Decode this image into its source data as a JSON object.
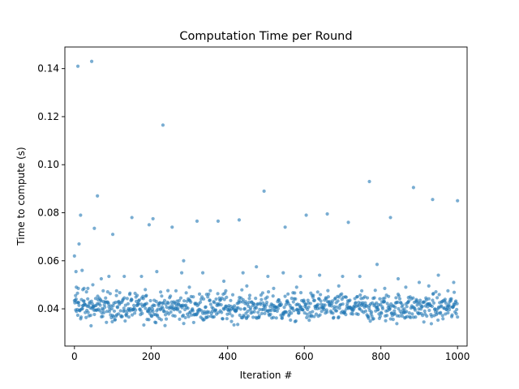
{
  "chart_data": {
    "type": "scatter",
    "title": "Computation Time per Round",
    "xlabel": "Iteration #",
    "ylabel": "Time to compute (s)",
    "xlim": [
      -25,
      1025
    ],
    "ylim": [
      0.0245,
      0.149
    ],
    "x_ticks": [
      0,
      200,
      400,
      600,
      800,
      1000
    ],
    "x_tick_labels": [
      "0",
      "200",
      "400",
      "600",
      "800",
      "1000"
    ],
    "y_ticks": [
      0.04,
      0.06,
      0.08,
      0.1,
      0.12,
      0.14
    ],
    "y_tick_labels": [
      "0.04",
      "0.06",
      "0.08",
      "0.10",
      "0.12",
      "0.14"
    ],
    "grid": false,
    "legend": "none",
    "point_color": "#1f77b4",
    "point_alpha": 0.6,
    "n_points": 1000,
    "series": [
      {
        "x": [
          0,
          4,
          9,
          12,
          16,
          20,
          45,
          52,
          60,
          100,
          150,
          195,
          205,
          231,
          255,
          285,
          320,
          375,
          430,
          475,
          495,
          550,
          605,
          660,
          715,
          770,
          825,
          885,
          935,
          1000,
          5,
          10,
          22,
          35,
          70,
          90,
          130,
          175,
          215,
          280,
          335,
          390,
          440,
          505,
          545,
          590,
          640,
          700,
          745,
          790,
          845,
          900,
          950,
          990,
          3,
          8,
          25,
          48,
          75,
          110,
          145,
          185,
          225,
          265,
          300,
          345,
          395,
          450,
          520,
          580,
          635,
          690,
          750,
          810,
          865,
          925,
          975
        ],
        "y": [
          0.062,
          0.0555,
          0.141,
          0.067,
          0.079,
          0.056,
          0.143,
          0.0735,
          0.087,
          0.071,
          0.078,
          0.075,
          0.0775,
          0.1165,
          0.074,
          0.06,
          0.0765,
          0.0765,
          0.077,
          0.0575,
          0.089,
          0.074,
          0.079,
          0.0795,
          0.076,
          0.093,
          0.078,
          0.0905,
          0.0855,
          0.085,
          0.049,
          0.0485,
          0.048,
          0.0485,
          0.0525,
          0.0535,
          0.0535,
          0.0535,
          0.0555,
          0.055,
          0.055,
          0.0515,
          0.055,
          0.0535,
          0.055,
          0.0535,
          0.054,
          0.0535,
          0.0535,
          0.0585,
          0.0525,
          0.051,
          0.054,
          0.051,
          0.0455,
          0.0465,
          0.0485,
          0.05,
          0.0475,
          0.0475,
          0.0465,
          0.048,
          0.047,
          0.0475,
          0.049,
          0.046,
          0.0475,
          0.0495,
          0.0485,
          0.049,
          0.047,
          0.0495,
          0.0475,
          0.0485,
          0.049,
          0.0495,
          0.0475
        ]
      }
    ],
    "bulk_distribution": {
      "x_range": [
        0,
        1000
      ],
      "y_median": 0.0405,
      "y_spread": 0.0045,
      "y_min": 0.0295,
      "y_max": 0.0495
    }
  }
}
